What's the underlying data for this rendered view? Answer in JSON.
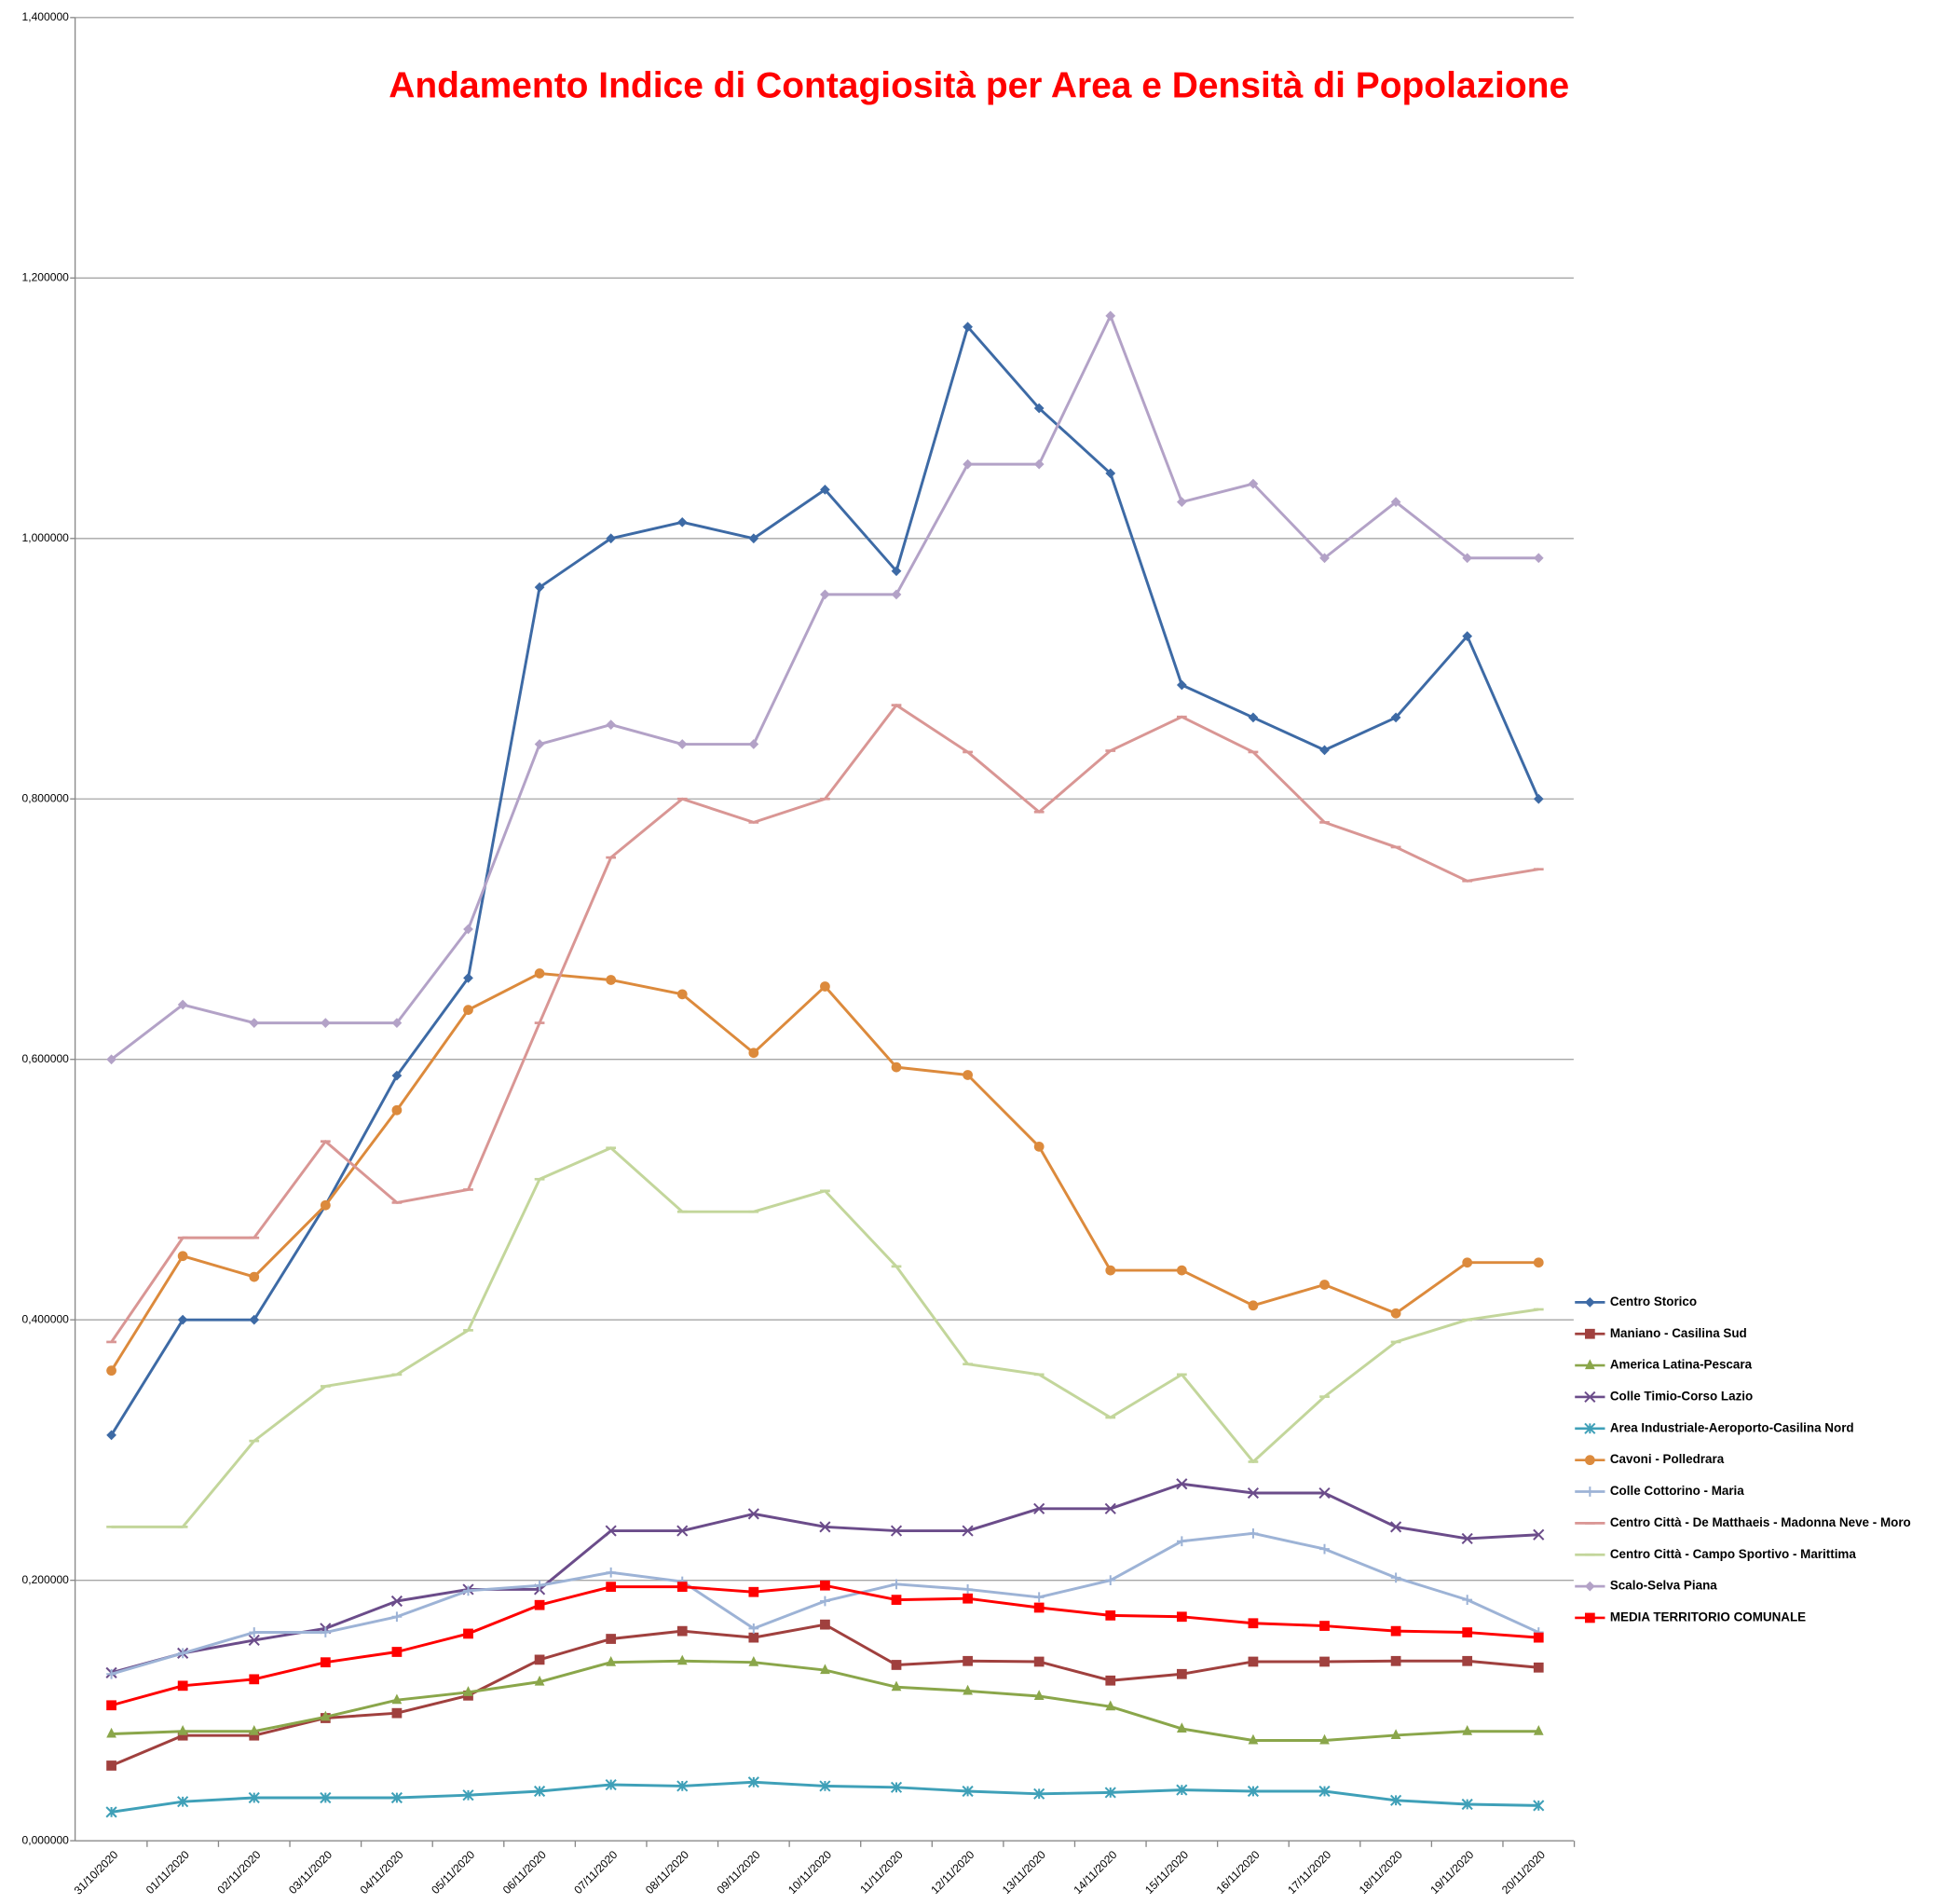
{
  "chart_data": {
    "type": "line",
    "title": "Andamento Indice di Contagiosità per Area e Densità di Popolazione",
    "categories": [
      "31/10/2020",
      "01/11/2020",
      "02/11/2020",
      "03/11/2020",
      "04/11/2020",
      "05/11/2020",
      "06/11/2020",
      "07/11/2020",
      "08/11/2020",
      "09/11/2020",
      "10/11/2020",
      "11/11/2020",
      "12/11/2020",
      "13/11/2020",
      "14/11/2020",
      "15/11/2020",
      "16/11/2020",
      "17/11/2020",
      "18/11/2020",
      "19/11/2020",
      "20/11/2020"
    ],
    "ylim": [
      0,
      1.4
    ],
    "yticks": [
      {
        "value": 0,
        "label": "0,000000"
      },
      {
        "value": 0.2,
        "label": "0,200000"
      },
      {
        "value": 0.4,
        "label": "0,400000"
      },
      {
        "value": 0.6,
        "label": "0,600000"
      },
      {
        "value": 0.8,
        "label": "0,800000"
      },
      {
        "value": 1.0,
        "label": "1,000000"
      },
      {
        "value": 1.2,
        "label": "1,200000"
      },
      {
        "value": 1.4,
        "label": "1,400000"
      }
    ],
    "grid": true,
    "legend": "right",
    "series": [
      {
        "name": "Centro Storico",
        "color": "#3d6aa5",
        "marker": "diamond",
        "values": [
          0.3115,
          0.4,
          0.4,
          0.488,
          0.5875,
          0.6625,
          0.9625,
          1.0,
          1.0125,
          1.0,
          1.0375,
          0.975,
          1.1625,
          1.1,
          1.05,
          0.8875,
          0.8625,
          0.8375,
          0.8625,
          0.925,
          0.8
        ]
      },
      {
        "name": "Maniano - Casilina Sud",
        "color": "#a0403e",
        "marker": "square",
        "values": [
          0.0577,
          0.0808,
          0.0808,
          0.0942,
          0.098,
          0.1115,
          0.139,
          0.155,
          0.161,
          0.156,
          0.166,
          0.135,
          0.138,
          0.1375,
          0.123,
          0.128,
          0.1375,
          0.1375,
          0.138,
          0.138,
          0.133
        ]
      },
      {
        "name": "America Latina-Pescara",
        "color": "#8aa64a",
        "marker": "triangle",
        "values": [
          0.082,
          0.084,
          0.084,
          0.095,
          0.108,
          0.114,
          0.122,
          0.137,
          0.138,
          0.137,
          0.131,
          0.118,
          0.115,
          0.111,
          0.103,
          0.086,
          0.077,
          0.077,
          0.081,
          0.084,
          0.084
        ]
      },
      {
        "name": "Colle Timio-Corso Lazio",
        "color": "#6b4c8a",
        "marker": "x",
        "values": [
          0.129,
          0.144,
          0.154,
          0.163,
          0.184,
          0.193,
          0.193,
          0.238,
          0.238,
          0.251,
          0.241,
          0.238,
          0.238,
          0.255,
          0.255,
          0.274,
          0.267,
          0.267,
          0.241,
          0.232,
          0.235
        ]
      },
      {
        "name": "Area Industriale-Aeroporto-Casilina Nord",
        "color": "#3fa0b8",
        "marker": "star",
        "values": [
          0.022,
          0.03,
          0.033,
          0.033,
          0.033,
          0.035,
          0.038,
          0.043,
          0.042,
          0.045,
          0.042,
          0.041,
          0.038,
          0.036,
          0.037,
          0.039,
          0.038,
          0.038,
          0.031,
          0.028,
          0.027
        ]
      },
      {
        "name": "Cavoni - Polledrara",
        "color": "#dc8a3c",
        "marker": "circle",
        "values": [
          0.361,
          0.449,
          0.433,
          0.488,
          0.561,
          0.638,
          0.666,
          0.661,
          0.65,
          0.605,
          0.656,
          0.594,
          0.588,
          0.533,
          0.438,
          0.438,
          0.411,
          0.427,
          0.405,
          0.444,
          0.444
        ]
      },
      {
        "name": "Colle Cottorino - Maria",
        "color": "#9db3d6",
        "marker": "plus",
        "values": [
          0.128,
          0.144,
          0.16,
          0.16,
          0.172,
          0.192,
          0.196,
          0.206,
          0.199,
          0.163,
          0.184,
          0.197,
          0.193,
          0.187,
          0.2,
          0.23,
          0.236,
          0.224,
          0.202,
          0.185,
          0.16
        ]
      },
      {
        "name": "Centro Città - De Matthaeis - Madonna Neve - Moro",
        "color": "#d99694",
        "marker": "dash",
        "values": [
          0.383,
          0.463,
          0.463,
          0.537,
          0.49,
          0.5,
          0.628,
          0.755,
          0.8,
          0.782,
          0.8,
          0.872,
          0.836,
          0.79,
          0.837,
          0.863,
          0.836,
          0.782,
          0.763,
          0.737,
          0.746
        ]
      },
      {
        "name": "Centro Città - Campo Sportivo - Marittima",
        "color": "#c3d69b",
        "marker": "dash",
        "values": [
          0.241,
          0.241,
          0.307,
          0.349,
          0.358,
          0.392,
          0.508,
          0.532,
          0.483,
          0.483,
          0.499,
          0.441,
          0.366,
          0.358,
          0.325,
          0.358,
          0.291,
          0.341,
          0.383,
          0.4,
          0.408
        ]
      },
      {
        "name": "Scalo-Selva Piana",
        "color": "#b3a2c7",
        "marker": "diamond",
        "values": [
          0.6,
          0.642,
          0.628,
          0.628,
          0.628,
          0.7,
          0.842,
          0.857,
          0.842,
          0.842,
          0.957,
          0.957,
          1.057,
          1.057,
          1.171,
          1.028,
          1.042,
          0.985,
          1.028,
          0.985,
          0.985
        ]
      },
      {
        "name": "MEDIA TERRITORIO COMUNALE",
        "color": "#ff0000",
        "marker": "square",
        "values": [
          0.104,
          0.119,
          0.124,
          0.137,
          0.145,
          0.159,
          0.181,
          0.195,
          0.195,
          0.191,
          0.196,
          0.185,
          0.186,
          0.179,
          0.173,
          0.172,
          0.167,
          0.165,
          0.161,
          0.16,
          0.156
        ]
      }
    ]
  }
}
